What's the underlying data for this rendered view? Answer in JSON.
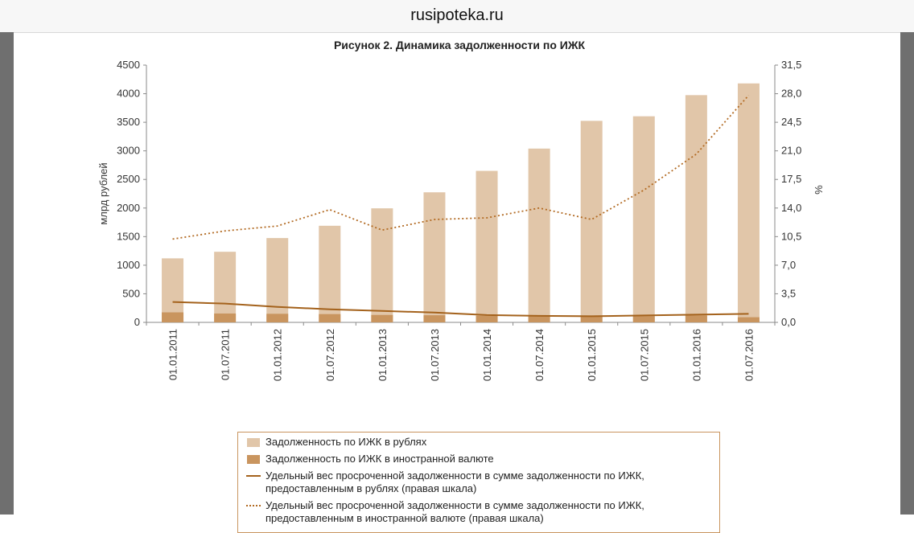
{
  "browser": {
    "url": "rusipoteka.ru"
  },
  "chart_data": {
    "type": "bar",
    "title": "Рисунок 2. Динамика задолженности по ИЖК",
    "ylabel": "млрд рублей",
    "y2label": "%",
    "ylim": [
      0,
      4500
    ],
    "y2lim": [
      0,
      31.5
    ],
    "yticks": [
      "0",
      "500",
      "1000",
      "1500",
      "2000",
      "2500",
      "3000",
      "3500",
      "4000",
      "4500"
    ],
    "y2ticks": [
      "0,0",
      "3,5",
      "7,0",
      "10,5",
      "14,0",
      "17,5",
      "21,0",
      "24,5",
      "28,0",
      "31,5"
    ],
    "categories": [
      "01.01.2011",
      "01.07.2011",
      "01.01.2012",
      "01.07.2012",
      "01.01.2013",
      "01.07.2013",
      "01.01.2014",
      "01.07.2014",
      "01.01.2015",
      "01.07.2015",
      "01.01.2016",
      "01.07.2016"
    ],
    "bar_series": [
      {
        "name": "Задолженность по ИЖК в рублях",
        "color": "#e1c6a9",
        "values": [
          1120,
          1235,
          1475,
          1690,
          1995,
          2275,
          2650,
          3040,
          3525,
          3605,
          3975,
          4180
        ]
      },
      {
        "name": "Задолженность по ИЖК в иностранной валюте",
        "color": "#c9955f",
        "values": [
          175,
          155,
          150,
          145,
          130,
          125,
          115,
          105,
          110,
          110,
          120,
          90
        ]
      }
    ],
    "line_series": [
      {
        "name": "Удельный вес просроченной задолженности в сумме задолженности по ИЖК, предоставленным в рублях (правая шкала)",
        "axis": "right",
        "style": "solid",
        "color": "#a4621c",
        "values": [
          2.5,
          2.3,
          1.9,
          1.6,
          1.4,
          1.2,
          0.9,
          0.8,
          0.75,
          0.85,
          0.95,
          1.05
        ]
      },
      {
        "name": "Удельный вес просроченной задолженности в сумме задолженности по ИЖК, предоставленным в иностранной валюте (правая шкала)",
        "axis": "right",
        "style": "dotted",
        "color": "#b26a22",
        "values": [
          10.2,
          11.2,
          11.8,
          13.8,
          11.3,
          12.6,
          12.8,
          14.0,
          12.6,
          16.2,
          20.6,
          27.8
        ]
      }
    ],
    "legend": "bottom",
    "grid": false
  }
}
